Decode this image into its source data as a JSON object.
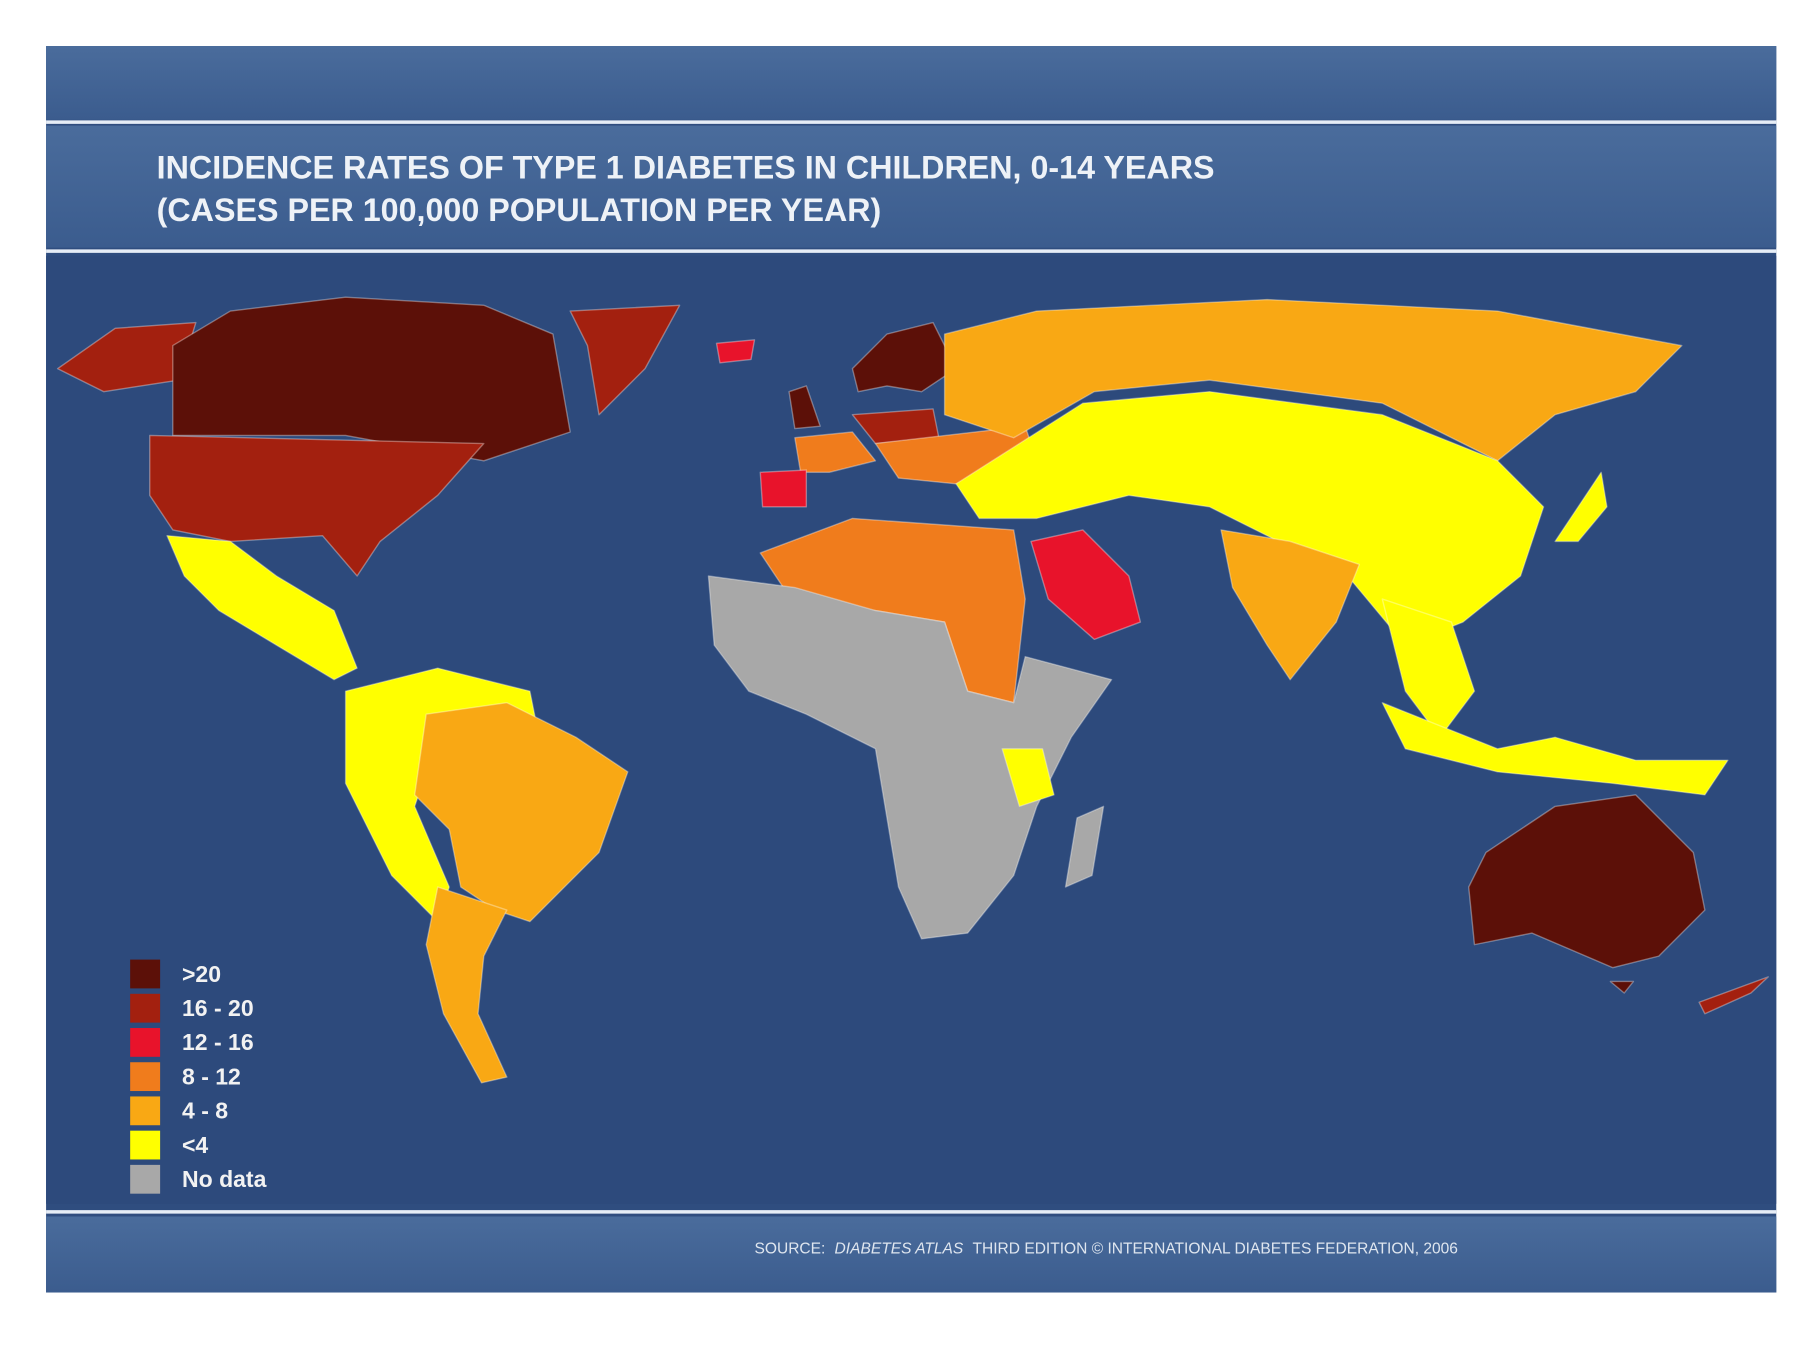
{
  "title": {
    "line1": "INCIDENCE RATES OF TYPE 1 DIABETES IN CHILDREN, 0-14 YEARS",
    "line2": "(CASES PER 100,000 POPULATION PER YEAR)"
  },
  "legend": [
    {
      "label": ">20",
      "color": "#5c1008"
    },
    {
      "label": "16 - 20",
      "color": "#a3200f"
    },
    {
      "label": "12 - 16",
      "color": "#e8132b"
    },
    {
      "label": "8 - 12",
      "color": "#f07c1c"
    },
    {
      "label": "4 - 8",
      "color": "#f9a814"
    },
    {
      "label": "<4",
      "color": "#ffff00"
    },
    {
      "label": "No data",
      "color": "#a8a8a8"
    }
  ],
  "source": {
    "prefix": "SOURCE:",
    "publication": "DIABETES ATLAS",
    "rest": "THIRD EDITION © INTERNATIONAL DIABETES FEDERATION, 2006"
  }
}
